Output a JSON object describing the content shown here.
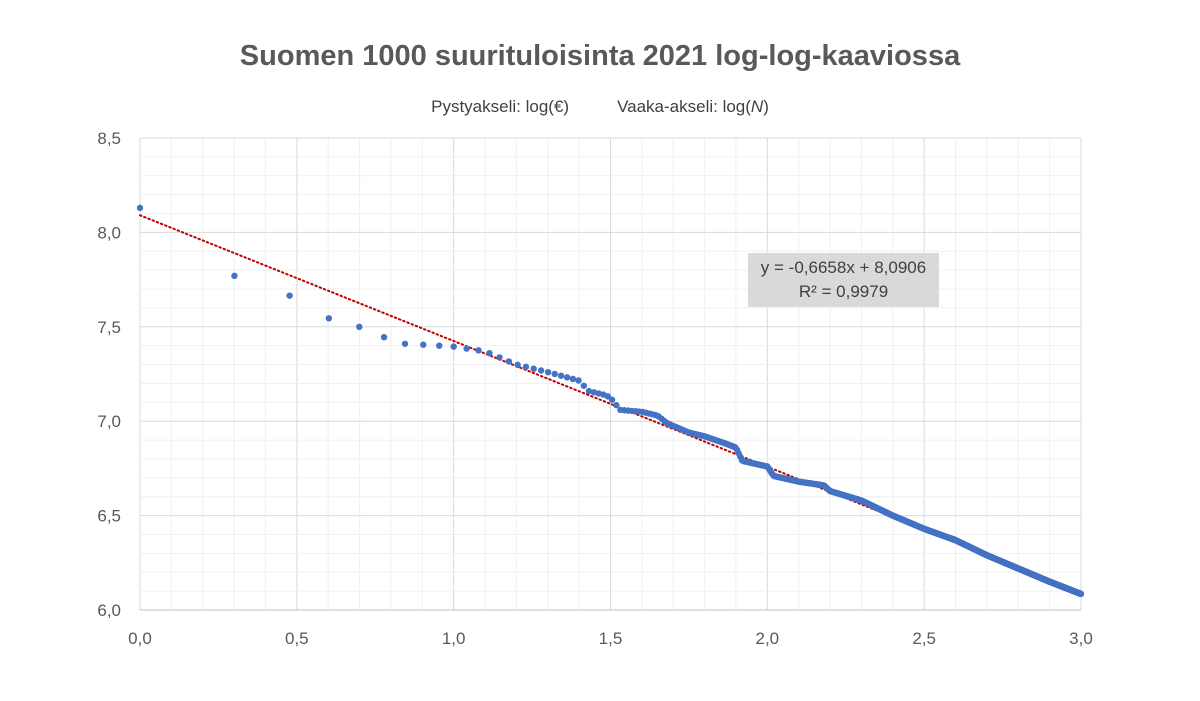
{
  "chart_data": {
    "type": "scatter",
    "title": "Suomen 1000 suurituloisinta 2021 log-log-kaaviossa",
    "subtitle_y": "Pystyakseli: log(€)",
    "subtitle_x_prefix": "Vaaka-akseli: log(",
    "subtitle_x_var": "N",
    "subtitle_x_suffix": ")",
    "xlim": [
      0,
      3
    ],
    "ylim": [
      6,
      8.5
    ],
    "x_ticks": [
      "0,0",
      "0,5",
      "1,0",
      "1,5",
      "2,0",
      "2,5",
      "3,0"
    ],
    "y_ticks": [
      "6,0",
      "6,5",
      "7,0",
      "7,5",
      "8,0",
      "8,5"
    ],
    "grid": true,
    "marker_color": "#4472c4",
    "trendline_color": "#c00000",
    "trendline": {
      "slope": -0.6658,
      "intercept": 8.0906,
      "equation": "y = -0,6658x + 8,0906",
      "r2": "R² = 0,9979"
    },
    "points_first": [
      [
        0.0,
        8.13
      ],
      [
        0.301,
        7.77
      ],
      [
        0.477,
        7.665
      ],
      [
        0.602,
        7.545
      ],
      [
        0.699,
        7.5
      ],
      [
        0.778,
        7.445
      ],
      [
        0.845,
        7.41
      ],
      [
        0.903,
        7.405
      ],
      [
        0.954,
        7.4
      ],
      [
        1.0,
        7.395
      ]
    ],
    "curve_knots": [
      [
        1.0,
        7.395
      ],
      [
        1.1,
        7.37
      ],
      [
        1.2,
        7.3
      ],
      [
        1.3,
        7.26
      ],
      [
        1.4,
        7.215
      ],
      [
        1.43,
        7.16
      ],
      [
        1.48,
        7.14
      ],
      [
        1.5,
        7.125
      ],
      [
        1.53,
        7.06
      ],
      [
        1.6,
        7.05
      ],
      [
        1.65,
        7.03
      ],
      [
        1.68,
        6.99
      ],
      [
        1.75,
        6.94
      ],
      [
        1.8,
        6.92
      ],
      [
        1.87,
        6.88
      ],
      [
        1.9,
        6.86
      ],
      [
        1.92,
        6.79
      ],
      [
        2.0,
        6.76
      ],
      [
        2.02,
        6.71
      ],
      [
        2.1,
        6.68
      ],
      [
        2.18,
        6.66
      ],
      [
        2.2,
        6.63
      ],
      [
        2.3,
        6.58
      ],
      [
        2.4,
        6.5
      ],
      [
        2.5,
        6.43
      ],
      [
        2.6,
        6.37
      ],
      [
        2.7,
        6.29
      ],
      [
        2.8,
        6.22
      ],
      [
        2.9,
        6.15
      ],
      [
        3.0,
        6.085
      ]
    ]
  }
}
